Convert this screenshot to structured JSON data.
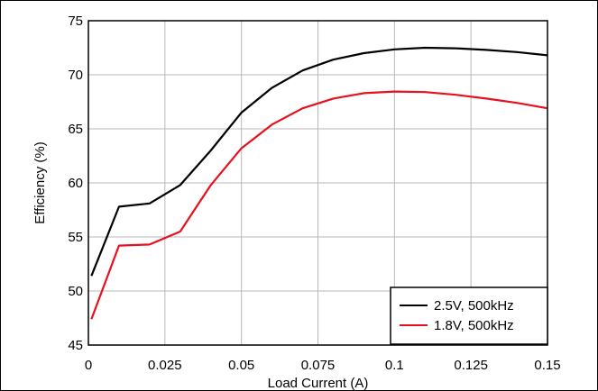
{
  "chart_data": {
    "type": "line",
    "title": "",
    "xlabel": "Load Current (A)",
    "ylabel": "Efficiency (%)",
    "xlim": [
      0,
      0.15
    ],
    "ylim": [
      45,
      75
    ],
    "xticks": [
      0,
      0.025,
      0.05,
      0.075,
      0.1,
      0.125,
      0.15
    ],
    "xtick_labels": [
      "0",
      "0.025",
      "0.05",
      "0.075",
      "0.1",
      "0.125",
      "0.15"
    ],
    "yticks": [
      45,
      50,
      55,
      60,
      65,
      70,
      75
    ],
    "ytick_labels": [
      "45",
      "50",
      "55",
      "60",
      "65",
      "70",
      "75"
    ],
    "grid": true,
    "legend_position": "bottom-right",
    "series": [
      {
        "name": "2.5V, 500kHz",
        "color": "#000000",
        "x": [
          0.001,
          0.01,
          0.02,
          0.03,
          0.04,
          0.05,
          0.06,
          0.07,
          0.08,
          0.09,
          0.1,
          0.11,
          0.12,
          0.13,
          0.14,
          0.15
        ],
        "y": [
          51.4,
          57.8,
          58.1,
          59.8,
          63.0,
          66.5,
          68.8,
          70.4,
          71.4,
          72.0,
          72.35,
          72.5,
          72.45,
          72.3,
          72.1,
          71.8
        ]
      },
      {
        "name": "1.8V, 500kHz",
        "color": "#e8101c",
        "x": [
          0.001,
          0.01,
          0.02,
          0.03,
          0.04,
          0.05,
          0.06,
          0.07,
          0.08,
          0.09,
          0.1,
          0.11,
          0.12,
          0.13,
          0.14,
          0.15
        ],
        "y": [
          47.4,
          54.2,
          54.3,
          55.5,
          59.8,
          63.2,
          65.4,
          66.9,
          67.8,
          68.3,
          68.45,
          68.4,
          68.15,
          67.8,
          67.4,
          66.9
        ]
      }
    ]
  }
}
